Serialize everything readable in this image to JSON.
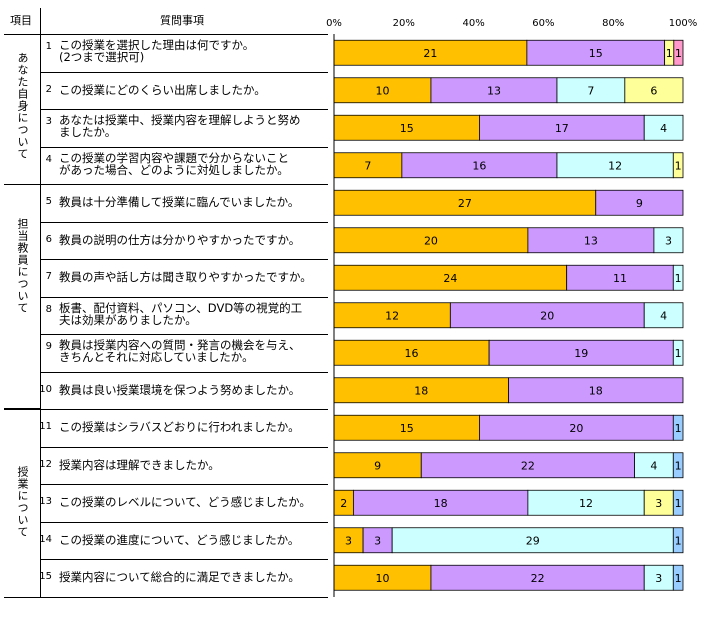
{
  "header": {
    "item": "項目",
    "question": "質問事項"
  },
  "categories": [
    "あなた自身について",
    "担当教員について",
    "授業について"
  ],
  "questions": [
    {
      "num": "1",
      "line1": "この授業を選択した理由は何ですか。",
      "line2": "(2つまで選択可)"
    },
    {
      "num": "2",
      "line1": "この授業にどのくらい出席しましたか。",
      "line2": ""
    },
    {
      "num": "3",
      "line1": "あなたは授業中、授業内容を理解しようと努め",
      "line2": "ましたか。"
    },
    {
      "num": "4",
      "line1": "この授業の学習内容や課題で分からないこと",
      "line2": "があった場合、どのように対処しましたか。"
    },
    {
      "num": "5",
      "line1": "教員は十分準備して授業に臨んでいましたか。",
      "line2": ""
    },
    {
      "num": "6",
      "line1": "教員の説明の仕方は分かりやすかったですか。",
      "line2": ""
    },
    {
      "num": "7",
      "line1": "教員の声や話し方は聞き取りやすかったですか。",
      "line2": ""
    },
    {
      "num": "8",
      "line1": "板書、配付資料、パソコン、DVD等の視覚的工",
      "line2": "夫は効果がありましたか。"
    },
    {
      "num": "9",
      "line1": "教員は授業内容への質問・発言の機会を与え、",
      "line2": "きちんとそれに対応していましたか。"
    },
    {
      "num": "10",
      "line1": "教員は良い授業環境を保つよう努めましたか。",
      "line2": ""
    },
    {
      "num": "11",
      "line1": "この授業はシラバスどおりに行われましたか。",
      "line2": ""
    },
    {
      "num": "12",
      "line1": "授業内容は理解できましたか。",
      "line2": ""
    },
    {
      "num": "13",
      "line1": "この授業のレベルについて、どう感じましたか。",
      "line2": ""
    },
    {
      "num": "14",
      "line1": "この授業の進度について、どう感じましたか。",
      "line2": ""
    },
    {
      "num": "15",
      "line1": "授業内容について総合的に満足できましたか。",
      "line2": ""
    }
  ],
  "colors": {
    "s1": "#FFC000",
    "s2": "#CC99FF",
    "s3": "#CCFFFF",
    "s4": "#FFFF99",
    "s5": "#FF99CC",
    "s6": "#99CCFF"
  },
  "chart_data": {
    "type": "bar",
    "orientation": "horizontal",
    "stacked": true,
    "normalized": true,
    "x_ticks": [
      "0%",
      "20%",
      "40%",
      "60%",
      "80%",
      "100%"
    ],
    "xlim": [
      0,
      100
    ],
    "categories": [
      "1",
      "2",
      "3",
      "4",
      "5",
      "6",
      "7",
      "8",
      "9",
      "10",
      "11",
      "12",
      "13",
      "14",
      "15"
    ],
    "rows": [
      [
        {
          "v": 21,
          "c": "s1"
        },
        {
          "v": 15,
          "c": "s2"
        },
        {
          "v": 1,
          "c": "s4"
        },
        {
          "v": 1,
          "c": "s5"
        }
      ],
      [
        {
          "v": 10,
          "c": "s1"
        },
        {
          "v": 13,
          "c": "s2"
        },
        {
          "v": 7,
          "c": "s3"
        },
        {
          "v": 6,
          "c": "s4"
        }
      ],
      [
        {
          "v": 15,
          "c": "s1"
        },
        {
          "v": 17,
          "c": "s2"
        },
        {
          "v": 4,
          "c": "s3"
        }
      ],
      [
        {
          "v": 7,
          "c": "s1"
        },
        {
          "v": 16,
          "c": "s2"
        },
        {
          "v": 12,
          "c": "s3"
        },
        {
          "v": 1,
          "c": "s4"
        }
      ],
      [
        {
          "v": 27,
          "c": "s1"
        },
        {
          "v": 9,
          "c": "s2"
        }
      ],
      [
        {
          "v": 20,
          "c": "s1"
        },
        {
          "v": 13,
          "c": "s2"
        },
        {
          "v": 3,
          "c": "s3"
        }
      ],
      [
        {
          "v": 24,
          "c": "s1"
        },
        {
          "v": 11,
          "c": "s2"
        },
        {
          "v": 1,
          "c": "s3"
        }
      ],
      [
        {
          "v": 12,
          "c": "s1"
        },
        {
          "v": 20,
          "c": "s2"
        },
        {
          "v": 4,
          "c": "s3"
        }
      ],
      [
        {
          "v": 16,
          "c": "s1"
        },
        {
          "v": 19,
          "c": "s2"
        },
        {
          "v": 1,
          "c": "s3"
        }
      ],
      [
        {
          "v": 18,
          "c": "s1"
        },
        {
          "v": 18,
          "c": "s2"
        }
      ],
      [
        {
          "v": 15,
          "c": "s1"
        },
        {
          "v": 20,
          "c": "s2"
        },
        {
          "v": 1,
          "c": "s6"
        }
      ],
      [
        {
          "v": 9,
          "c": "s1"
        },
        {
          "v": 22,
          "c": "s2"
        },
        {
          "v": 4,
          "c": "s3"
        },
        {
          "v": 1,
          "c": "s6"
        }
      ],
      [
        {
          "v": 2,
          "c": "s1"
        },
        {
          "v": 18,
          "c": "s2"
        },
        {
          "v": 12,
          "c": "s3"
        },
        {
          "v": 3,
          "c": "s4"
        },
        {
          "v": 1,
          "c": "s6"
        }
      ],
      [
        {
          "v": 3,
          "c": "s1"
        },
        {
          "v": 3,
          "c": "s2"
        },
        {
          "v": 29,
          "c": "s3"
        },
        {
          "v": 1,
          "c": "s6"
        }
      ],
      [
        {
          "v": 10,
          "c": "s1"
        },
        {
          "v": 22,
          "c": "s2"
        },
        {
          "v": 3,
          "c": "s3"
        },
        {
          "v": 1,
          "c": "s6"
        }
      ]
    ]
  }
}
